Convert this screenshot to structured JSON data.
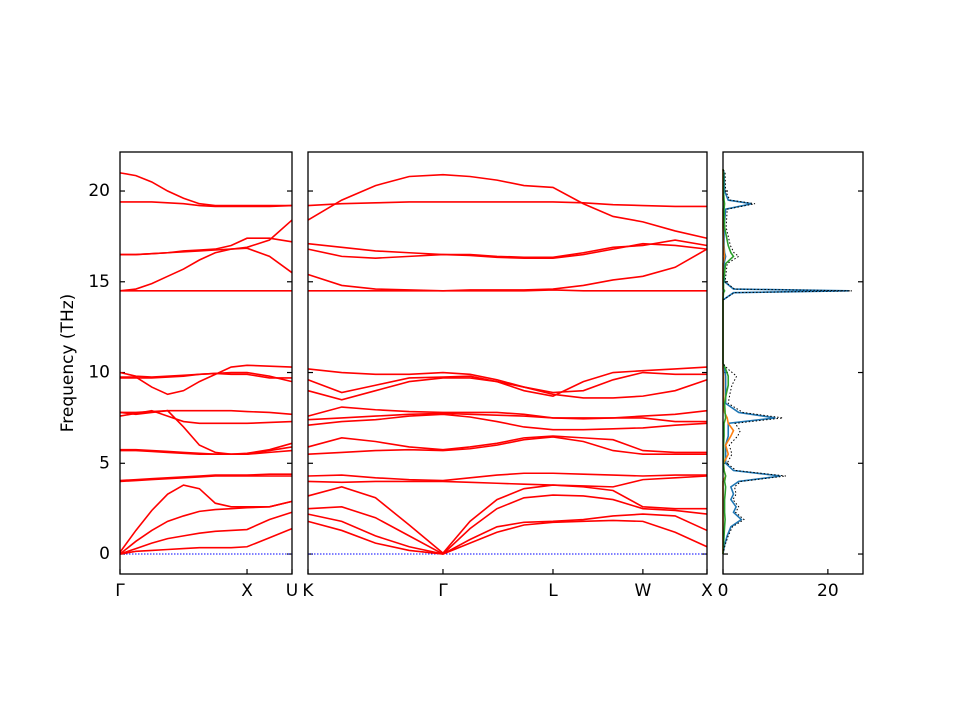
{
  "chart_data": [
    {
      "type": "line",
      "color": "#ff0000",
      "ylabel": "Frequency (THz)",
      "ylim": [
        -1.1,
        22.15
      ],
      "yticks": [
        0,
        5,
        10,
        15,
        20
      ],
      "xlim": [
        0,
        1.354
      ],
      "xticks": [
        {
          "value": 0,
          "label": "Γ"
        },
        {
          "value": 1,
          "label": "X"
        },
        {
          "value": 1.354,
          "label": "U"
        }
      ],
      "x": [
        0,
        0.125,
        0.25,
        0.375,
        0.5,
        0.625,
        0.75,
        0.875,
        1,
        1.177,
        1.354
      ],
      "series": [
        {
          "values": [
            0,
            0.15,
            0.2,
            0.25,
            0.3,
            0.35,
            0.35,
            0.35,
            0.4,
            0.9,
            1.4
          ]
        },
        {
          "values": [
            0,
            0.3,
            0.6,
            0.85,
            1.0,
            1.15,
            1.25,
            1.3,
            1.35,
            1.9,
            2.3
          ]
        },
        {
          "values": [
            0,
            0.7,
            1.3,
            1.8,
            2.1,
            2.35,
            2.45,
            2.5,
            2.55,
            2.6,
            2.9
          ]
        },
        {
          "values": [
            0.1,
            1.3,
            2.4,
            3.3,
            3.8,
            3.6,
            2.8,
            2.6,
            2.6,
            2.6,
            2.9
          ]
        },
        {
          "values": [
            4.0,
            4.05,
            4.1,
            4.15,
            4.2,
            4.25,
            4.3,
            4.3,
            4.3,
            4.3,
            4.3
          ]
        },
        {
          "values": [
            4.05,
            4.1,
            4.15,
            4.2,
            4.25,
            4.3,
            4.35,
            4.35,
            4.35,
            4.4,
            4.4
          ]
        },
        {
          "values": [
            5.7,
            5.7,
            5.65,
            5.6,
            5.55,
            5.5,
            5.5,
            5.5,
            5.5,
            5.6,
            5.7
          ]
        },
        {
          "values": [
            5.75,
            5.75,
            5.7,
            5.65,
            5.6,
            5.55,
            5.5,
            5.5,
            5.55,
            5.75,
            6.1
          ]
        },
        {
          "values": [
            7.6,
            7.75,
            7.9,
            7.6,
            7.3,
            7.2,
            7.2,
            7.2,
            7.2,
            7.25,
            7.3
          ]
        },
        {
          "values": [
            7.8,
            7.8,
            7.85,
            7.9,
            7.9,
            7.9,
            7.9,
            7.9,
            7.85,
            7.8,
            7.7
          ]
        },
        {
          "values": [
            7.8,
            7.7,
            7.8,
            7.9,
            7.0,
            6.0,
            5.6,
            5.5,
            5.5,
            5.7,
            5.9
          ]
        },
        {
          "values": [
            9.7,
            9.7,
            9.7,
            9.75,
            9.8,
            9.9,
            9.95,
            10.0,
            10.0,
            9.8,
            9.5
          ]
        },
        {
          "values": [
            9.75,
            9.75,
            9.2,
            8.8,
            9.0,
            9.5,
            9.9,
            10.3,
            10.4,
            10.35,
            10.3
          ]
        },
        {
          "values": [
            10.0,
            9.8,
            9.75,
            9.8,
            9.85,
            9.9,
            9.95,
            9.9,
            9.9,
            9.7,
            9.7
          ]
        },
        {
          "values": [
            14.5,
            14.5,
            14.5,
            14.5,
            14.5,
            14.5,
            14.5,
            14.5,
            14.5,
            14.5,
            14.5
          ]
        },
        {
          "values": [
            14.5,
            14.6,
            14.9,
            15.3,
            15.7,
            16.2,
            16.6,
            16.8,
            16.9,
            17.3,
            18.4
          ]
        },
        {
          "values": [
            16.5,
            16.5,
            16.55,
            16.6,
            16.65,
            16.7,
            16.75,
            16.8,
            16.85,
            16.4,
            15.5
          ]
        },
        {
          "values": [
            16.5,
            16.5,
            16.55,
            16.6,
            16.7,
            16.75,
            16.8,
            17.0,
            17.4,
            17.4,
            17.2
          ]
        },
        {
          "values": [
            19.4,
            19.4,
            19.4,
            19.35,
            19.3,
            19.2,
            19.15,
            19.15,
            19.15,
            19.15,
            19.2
          ]
        },
        {
          "values": [
            21.0,
            20.85,
            20.5,
            20.0,
            19.6,
            19.3,
            19.2,
            19.2,
            19.2,
            19.2,
            19.2
          ]
        }
      ]
    },
    {
      "type": "line",
      "color": "#ff0000",
      "ylim": [
        -1.1,
        22.15
      ],
      "yticks": [
        0,
        5,
        10,
        15,
        20
      ],
      "xlim": [
        0,
        2.956
      ],
      "xticks": [
        {
          "value": 0,
          "label": "K"
        },
        {
          "value": 1,
          "label": "Γ"
        },
        {
          "value": 1.815,
          "label": "L"
        },
        {
          "value": 2.481,
          "label": "W"
        },
        {
          "value": 2.956,
          "label": "X"
        }
      ],
      "x": [
        0,
        0.25,
        0.5,
        0.75,
        1,
        1.2,
        1.4,
        1.6,
        1.815,
        2.04,
        2.26,
        2.481,
        2.72,
        2.956
      ],
      "series": [
        {
          "values": [
            1.8,
            1.3,
            0.6,
            0.2,
            0,
            0.6,
            1.2,
            1.6,
            1.75,
            1.8,
            1.85,
            1.8,
            1.2,
            0.4
          ]
        },
        {
          "values": [
            2.2,
            1.8,
            1.0,
            0.4,
            0,
            0.8,
            1.5,
            1.75,
            1.8,
            1.9,
            2.1,
            2.2,
            2.1,
            1.3
          ]
        },
        {
          "values": [
            2.5,
            2.6,
            2.0,
            1.0,
            0,
            1.4,
            2.5,
            3.1,
            3.25,
            3.2,
            3.0,
            2.5,
            2.4,
            2.2
          ]
        },
        {
          "values": [
            3.2,
            3.7,
            3.1,
            1.6,
            0.05,
            1.8,
            3.0,
            3.6,
            3.8,
            3.7,
            3.5,
            2.6,
            2.5,
            2.5
          ]
        },
        {
          "values": [
            4.0,
            3.95,
            4.0,
            4.0,
            4.0,
            3.95,
            3.9,
            3.85,
            3.8,
            3.75,
            3.7,
            4.1,
            4.2,
            4.3
          ]
        },
        {
          "values": [
            4.3,
            4.35,
            4.2,
            4.1,
            4.05,
            4.2,
            4.35,
            4.45,
            4.45,
            4.4,
            4.35,
            4.3,
            4.35,
            4.35
          ]
        },
        {
          "values": [
            5.5,
            5.6,
            5.7,
            5.75,
            5.7,
            5.8,
            6.0,
            6.3,
            6.45,
            6.2,
            5.7,
            5.5,
            5.5,
            5.5
          ]
        },
        {
          "values": [
            5.9,
            6.4,
            6.2,
            5.9,
            5.75,
            5.9,
            6.1,
            6.4,
            6.5,
            6.4,
            6.3,
            5.7,
            5.6,
            5.6
          ]
        },
        {
          "values": [
            7.1,
            7.3,
            7.4,
            7.6,
            7.7,
            7.55,
            7.3,
            7.0,
            6.85,
            6.85,
            6.9,
            6.95,
            7.1,
            7.2
          ]
        },
        {
          "values": [
            7.4,
            7.5,
            7.6,
            7.7,
            7.75,
            7.7,
            7.65,
            7.6,
            7.5,
            7.5,
            7.5,
            7.6,
            7.7,
            7.9
          ]
        },
        {
          "values": [
            7.6,
            8.1,
            7.95,
            7.85,
            7.8,
            7.8,
            7.8,
            7.7,
            7.5,
            7.45,
            7.5,
            7.5,
            7.3,
            7.3
          ]
        },
        {
          "values": [
            9.0,
            8.5,
            9.0,
            9.5,
            9.7,
            9.7,
            9.5,
            9.2,
            8.8,
            8.6,
            8.6,
            8.7,
            9.0,
            9.6
          ]
        },
        {
          "values": [
            9.6,
            8.9,
            9.3,
            9.7,
            9.75,
            9.8,
            9.5,
            9.0,
            8.7,
            9.5,
            10.0,
            10.1,
            10.2,
            10.3
          ]
        },
        {
          "values": [
            10.2,
            10.0,
            9.9,
            9.9,
            10.0,
            9.9,
            9.6,
            9.2,
            8.9,
            9.0,
            9.6,
            10.0,
            9.9,
            9.9
          ]
        },
        {
          "values": [
            14.5,
            14.5,
            14.5,
            14.5,
            14.5,
            14.5,
            14.5,
            14.5,
            14.55,
            14.5,
            14.5,
            14.5,
            14.5,
            14.5
          ]
        },
        {
          "values": [
            15.4,
            14.8,
            14.6,
            14.55,
            14.5,
            14.55,
            14.55,
            14.55,
            14.6,
            14.8,
            15.1,
            15.3,
            15.8,
            16.8
          ]
        },
        {
          "values": [
            16.8,
            16.4,
            16.3,
            16.4,
            16.5,
            16.45,
            16.35,
            16.3,
            16.3,
            16.5,
            16.8,
            17.1,
            17.0,
            16.8
          ]
        },
        {
          "values": [
            17.1,
            16.9,
            16.7,
            16.6,
            16.5,
            16.5,
            16.4,
            16.35,
            16.35,
            16.6,
            16.9,
            17.0,
            17.3,
            17.0
          ]
        },
        {
          "values": [
            19.2,
            19.3,
            19.35,
            19.4,
            19.4,
            19.4,
            19.4,
            19.4,
            19.4,
            19.35,
            19.25,
            19.2,
            19.15,
            19.15
          ]
        },
        {
          "values": [
            18.4,
            19.5,
            20.3,
            20.8,
            20.9,
            20.8,
            20.6,
            20.3,
            20.2,
            19.3,
            18.6,
            18.3,
            17.8,
            17.4
          ]
        }
      ]
    },
    {
      "type": "dos",
      "ylim": [
        -1.1,
        22.15
      ],
      "yticks": [
        0,
        5,
        10,
        15,
        20
      ],
      "xlim": [
        0,
        26.7
      ],
      "xticks": [
        0,
        20
      ],
      "y": [
        0,
        0.5,
        1,
        1.5,
        1.9,
        2.3,
        2.6,
        3,
        3.3,
        3.7,
        4,
        4.3,
        4.6,
        5,
        5.5,
        6,
        6.5,
        6.8,
        7.2,
        7.5,
        7.8,
        8.3,
        8.8,
        9.3,
        9.8,
        10.2,
        10.5,
        12,
        14,
        14.4,
        14.5,
        14.6,
        15,
        16,
        16.4,
        16.6,
        17,
        18,
        19,
        19.3,
        19.5,
        20,
        21,
        21.2
      ],
      "series": [
        {
          "color": "#1f77b4",
          "values": [
            0,
            0.3,
            0.8,
            1.5,
            3.5,
            2,
            2.5,
            1.5,
            2,
            1.5,
            3,
            11,
            2,
            0.5,
            0.5,
            0.5,
            1,
            1,
            1,
            10,
            3,
            0.5,
            0.5,
            0.5,
            0.5,
            0.3,
            0,
            0,
            0,
            2,
            24,
            2,
            0.3,
            0.2,
            0.5,
            0.3,
            0.2,
            0.2,
            0.5,
            5.5,
            1,
            0.3,
            0.2,
            0
          ]
        },
        {
          "color": "#ff7f0e",
          "values": [
            0,
            0,
            0,
            0,
            0,
            0,
            0,
            0,
            0,
            0,
            0,
            0.5,
            0.2,
            0.1,
            1,
            0.5,
            1.5,
            2,
            1,
            0.8,
            0.3,
            0.1,
            0.1,
            0.1,
            0.1,
            0,
            0,
            0,
            0,
            0,
            0.2,
            0,
            0,
            0,
            0.3,
            0.2,
            0.1,
            0,
            0,
            0.2,
            0,
            0,
            0,
            0
          ]
        },
        {
          "color": "#2ca02c",
          "values": [
            0,
            0.1,
            0.2,
            0.3,
            0.4,
            0.3,
            0.3,
            0.3,
            0.4,
            0.5,
            0.3,
            0.5,
            0.2,
            0.1,
            0.1,
            0.1,
            0.2,
            0.2,
            0.2,
            0.5,
            0.4,
            0.3,
            0.6,
            1,
            1,
            0.5,
            0,
            0,
            0,
            0.1,
            0.3,
            0.1,
            0.1,
            0.5,
            2,
            1.5,
            1,
            0.3,
            0.2,
            0.3,
            0.2,
            0.1,
            0.1,
            0
          ]
        },
        {
          "color": "#000000",
          "dotted": true,
          "values": [
            0,
            0.4,
            1,
            1.8,
            4,
            2.4,
            3,
            1.9,
            2.5,
            2.2,
            3.4,
            12,
            2.5,
            0.8,
            1.7,
            1.2,
            2.8,
            3.3,
            2.3,
            11.4,
            3.8,
            1,
            1.3,
            1.7,
            2.6,
            0.9,
            0,
            0,
            0,
            2.2,
            24.6,
            2.2,
            0.4,
            0.8,
            3,
            2.1,
            1.4,
            0.6,
            0.8,
            6.1,
            1.3,
            0.5,
            0.4,
            0
          ]
        }
      ]
    }
  ]
}
